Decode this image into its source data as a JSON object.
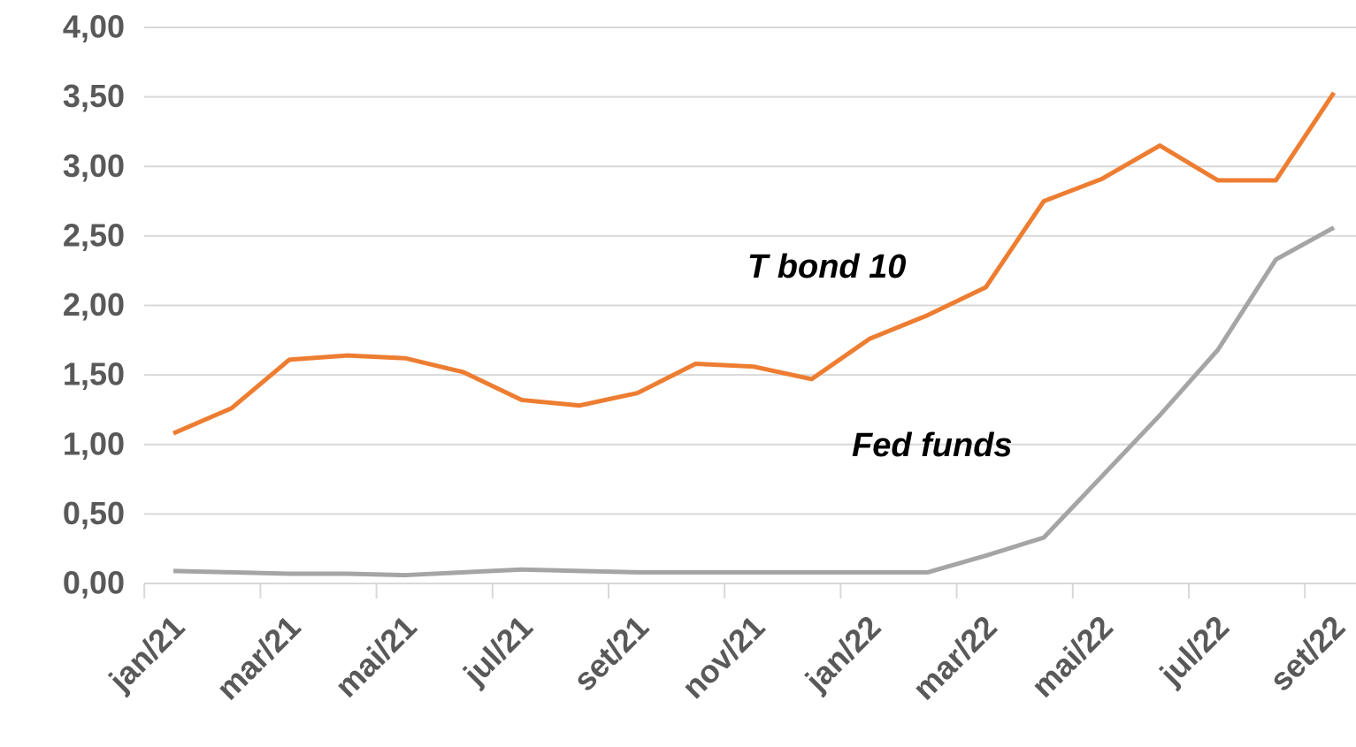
{
  "chart_data": {
    "type": "line",
    "categories": [
      "jan/21",
      null,
      "mar/21",
      null,
      "mai/21",
      null,
      "jul/21",
      null,
      "set/21",
      null,
      "nov/21",
      null,
      "jan/22",
      null,
      "mar/22",
      null,
      "mai/22",
      null,
      "jul/22",
      null,
      "set/22"
    ],
    "series": [
      {
        "name": "T bond 10",
        "color": "#ED7D31",
        "values": [
          1.08,
          1.26,
          1.61,
          1.64,
          1.62,
          1.52,
          1.32,
          1.28,
          1.37,
          1.58,
          1.56,
          1.47,
          1.76,
          1.93,
          2.13,
          2.75,
          2.91,
          3.15,
          2.9,
          2.9,
          3.53
        ]
      },
      {
        "name": "Fed funds",
        "color": "#A5A5A5",
        "values": [
          0.09,
          0.08,
          0.07,
          0.07,
          0.06,
          0.08,
          0.1,
          0.09,
          0.08,
          0.08,
          0.08,
          0.08,
          0.08,
          0.08,
          0.2,
          0.33,
          0.77,
          1.21,
          1.68,
          2.33,
          2.56
        ]
      }
    ],
    "ylim": [
      0,
      4
    ],
    "yticks": [
      {
        "value": 0,
        "label": "0,00"
      },
      {
        "value": 0.5,
        "label": "0,50"
      },
      {
        "value": 1,
        "label": "1,00"
      },
      {
        "value": 1.5,
        "label": "1,50"
      },
      {
        "value": 2,
        "label": "2,00"
      },
      {
        "value": 2.5,
        "label": "2,50"
      },
      {
        "value": 3,
        "label": "3,00"
      },
      {
        "value": 3.5,
        "label": "3,50"
      },
      {
        "value": 4,
        "label": "4,00"
      }
    ],
    "grid": true
  }
}
